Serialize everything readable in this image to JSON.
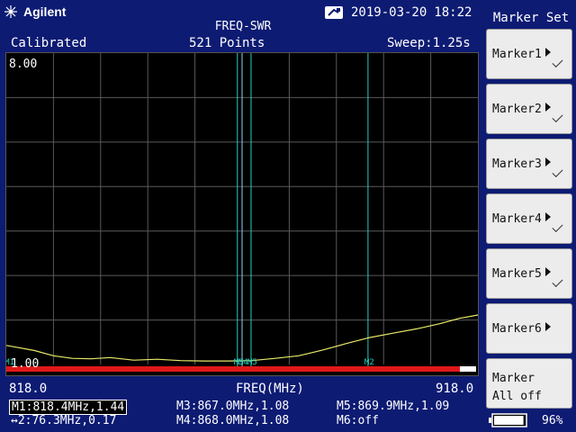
{
  "brand": {
    "name": "Agilent"
  },
  "header": {
    "date": "2019-03-20",
    "time": "18:22",
    "mode_title": "FREQ-SWR"
  },
  "status": {
    "calibration": "Calibrated",
    "points": "521 Points",
    "sweep": "Sweep:1.25s"
  },
  "plot": {
    "y_top_label": "8.00",
    "y_bottom_label": "1.00",
    "x_start": "818.0",
    "x_stop": "918.0",
    "x_unit": "FREQ(MHz)",
    "colors": {
      "trace": "#e8e86a",
      "grid": "#5a5a5a",
      "background": "#000000",
      "marker_line": "#20d0c0",
      "active_marker_line": "#8fd0ff",
      "bottom_bar": "#e01818"
    },
    "marker_tags": {
      "m1": "M1",
      "m3": "M3",
      "m4": "M4",
      "m5": "M5",
      "m2": "M2"
    }
  },
  "chart_data": {
    "type": "line",
    "xlim": [
      818.0,
      918.0
    ],
    "ylim": [
      1.0,
      8.0
    ],
    "grid": true,
    "series": [
      {
        "x": [
          818.0,
          820.0,
          824.0,
          828.0,
          832.0,
          836.0,
          840.0,
          845.0,
          850.0,
          855.0,
          860.0,
          865.0,
          870.0,
          875.0,
          880.0,
          885.0,
          890.0,
          895.0,
          900.0,
          905.0,
          910.0,
          914.0,
          918.0
        ],
        "y": [
          1.44,
          1.4,
          1.32,
          1.2,
          1.14,
          1.13,
          1.16,
          1.1,
          1.12,
          1.09,
          1.08,
          1.08,
          1.09,
          1.14,
          1.2,
          1.33,
          1.48,
          1.62,
          1.72,
          1.82,
          1.94,
          2.06,
          2.14
        ]
      }
    ],
    "markers": [
      {
        "name": "M1",
        "freq": 818.4,
        "value": 1.44
      },
      {
        "name": "M2",
        "freq": 894.7
      },
      {
        "name": "M3",
        "freq": 867.0,
        "value": 1.08
      },
      {
        "name": "M4",
        "freq": 868.0,
        "value": 1.08
      },
      {
        "name": "M5",
        "freq": 869.9,
        "value": 1.09
      }
    ]
  },
  "readouts": {
    "m1": "M1:818.4MHz,1.44",
    "delta": "↔2:76.3MHz,0.17",
    "m3": "M3:867.0MHz,1.08",
    "m4": "M4:868.0MHz,1.08",
    "m5": "M5:869.9MHz,1.09",
    "m6": "M6:off"
  },
  "panel": {
    "title": "Marker Set",
    "softkeys": [
      {
        "label": "Marker1"
      },
      {
        "label": "Marker2"
      },
      {
        "label": "Marker3"
      },
      {
        "label": "Marker4"
      },
      {
        "label": "Marker5"
      },
      {
        "label": "Marker6"
      }
    ],
    "all_off_line1": "Marker",
    "all_off_line2": "All off"
  },
  "battery": {
    "percent": "96%",
    "level": 0.96
  }
}
